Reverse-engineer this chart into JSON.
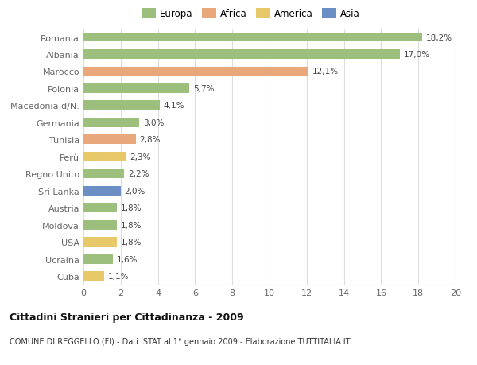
{
  "categories": [
    "Cuba",
    "Ucraina",
    "USA",
    "Moldova",
    "Austria",
    "Sri Lanka",
    "Regno Unito",
    "Perù",
    "Tunisia",
    "Germania",
    "Macedonia d/N.",
    "Polonia",
    "Marocco",
    "Albania",
    "Romania"
  ],
  "values": [
    1.1,
    1.6,
    1.8,
    1.8,
    1.8,
    2.0,
    2.2,
    2.3,
    2.8,
    3.0,
    4.1,
    5.7,
    12.1,
    17.0,
    18.2
  ],
  "colors": [
    "#e8c96a",
    "#9dbf7e",
    "#e8c96a",
    "#9dbf7e",
    "#9dbf7e",
    "#6b8ec4",
    "#9dbf7e",
    "#e8c96a",
    "#e8a87c",
    "#9dbf7e",
    "#9dbf7e",
    "#9dbf7e",
    "#e8a87c",
    "#9dbf7e",
    "#9dbf7e"
  ],
  "labels": [
    "1,1%",
    "1,6%",
    "1,8%",
    "1,8%",
    "1,8%",
    "2,0%",
    "2,2%",
    "2,3%",
    "2,8%",
    "3,0%",
    "4,1%",
    "5,7%",
    "12,1%",
    "17,0%",
    "18,2%"
  ],
  "legend": {
    "Europa": "#9dbf7e",
    "Africa": "#e8a87c",
    "America": "#e8c96a",
    "Asia": "#6b8ec4"
  },
  "title": "Cittadini Stranieri per Cittadinanza - 2009",
  "subtitle": "COMUNE DI REGGELLO (FI) - Dati ISTAT al 1° gennaio 2009 - Elaborazione TUTTITALIA.IT",
  "xlim": [
    0,
    20
  ],
  "xticks": [
    0,
    2,
    4,
    6,
    8,
    10,
    12,
    14,
    16,
    18,
    20
  ],
  "background_color": "#ffffff",
  "grid_color": "#dddddd",
  "bar_height": 0.55
}
